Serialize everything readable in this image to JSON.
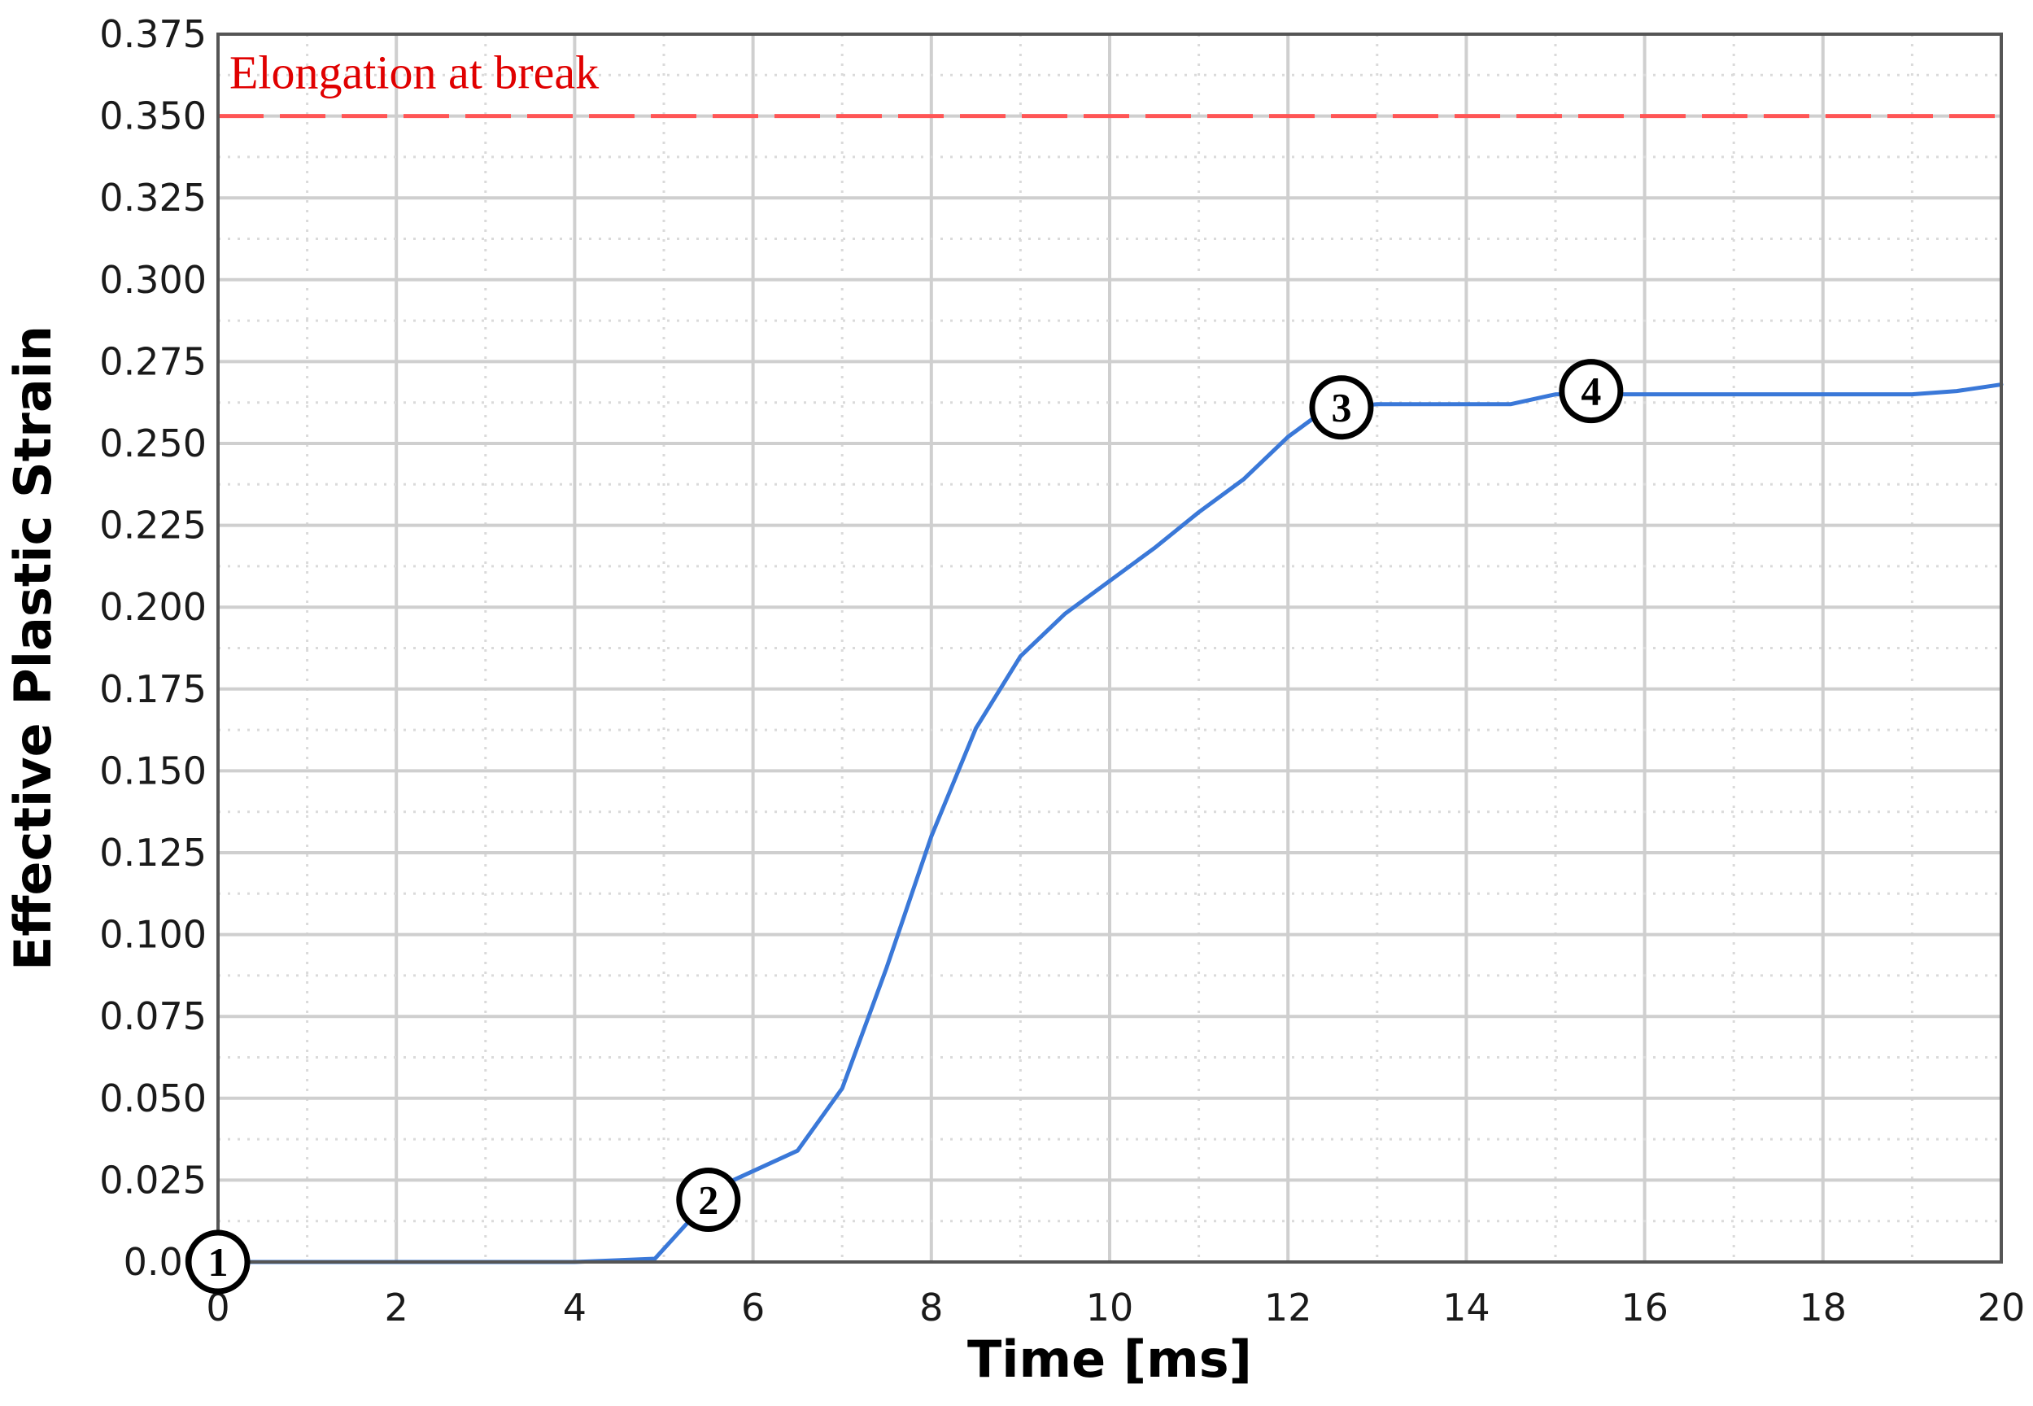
{
  "chart_data": {
    "type": "line",
    "title": "",
    "xlabel": "Time [ms]",
    "ylabel": "Effective Plastic Strain",
    "xlim": [
      0,
      20
    ],
    "ylim": [
      0,
      0.375
    ],
    "xticks": [
      0,
      2,
      4,
      6,
      8,
      10,
      12,
      14,
      16,
      18,
      20
    ],
    "xtick_labels": [
      "0",
      "2",
      "4",
      "6",
      "8",
      "10",
      "12",
      "14",
      "16",
      "18",
      "20"
    ],
    "yticks": [
      0,
      0.025,
      0.05,
      0.075,
      0.1,
      0.125,
      0.15,
      0.175,
      0.2,
      0.225,
      0.25,
      0.275,
      0.3,
      0.325,
      0.35,
      0.375
    ],
    "ytick_labels": [
      "0.00",
      "0.025",
      "0.050",
      "0.075",
      "0.100",
      "0.125",
      "0.150",
      "0.175",
      "0.200",
      "0.225",
      "0.250",
      "0.275",
      "0.300",
      "0.325",
      "0.350",
      "0.375"
    ],
    "grid": true,
    "series": [
      {
        "color": "#3a78d8",
        "points": [
          [
            0,
            0.0
          ],
          [
            2,
            0.0
          ],
          [
            4,
            0.0
          ],
          [
            4.9,
            0.001
          ],
          [
            5.3,
            0.013
          ],
          [
            5.7,
            0.024
          ],
          [
            6.5,
            0.034
          ],
          [
            7.0,
            0.053
          ],
          [
            7.5,
            0.09
          ],
          [
            8.0,
            0.13
          ],
          [
            8.5,
            0.163
          ],
          [
            9.0,
            0.185
          ],
          [
            9.5,
            0.198
          ],
          [
            10.0,
            0.208
          ],
          [
            10.5,
            0.218
          ],
          [
            11.0,
            0.229
          ],
          [
            11.5,
            0.239
          ],
          [
            12.0,
            0.252
          ],
          [
            12.3,
            0.258
          ],
          [
            12.6,
            0.261
          ],
          [
            13.0,
            0.262
          ],
          [
            14.0,
            0.262
          ],
          [
            14.5,
            0.262
          ],
          [
            15.0,
            0.265
          ],
          [
            15.5,
            0.265
          ],
          [
            16.0,
            0.265
          ],
          [
            18.0,
            0.265
          ],
          [
            19.0,
            0.265
          ],
          [
            19.5,
            0.266
          ],
          [
            20.0,
            0.268
          ]
        ]
      }
    ],
    "reference_line": {
      "y": 0.35,
      "label": "Elongation at break",
      "color": "#ff5555",
      "label_color": "#e00000",
      "style": "dashed"
    },
    "annotations": [
      {
        "label": "1",
        "x": 0,
        "y": 0.0
      },
      {
        "label": "2",
        "x": 5.5,
        "y": 0.019
      },
      {
        "label": "3",
        "x": 12.6,
        "y": 0.261
      },
      {
        "label": "4",
        "x": 15.4,
        "y": 0.266
      }
    ]
  }
}
